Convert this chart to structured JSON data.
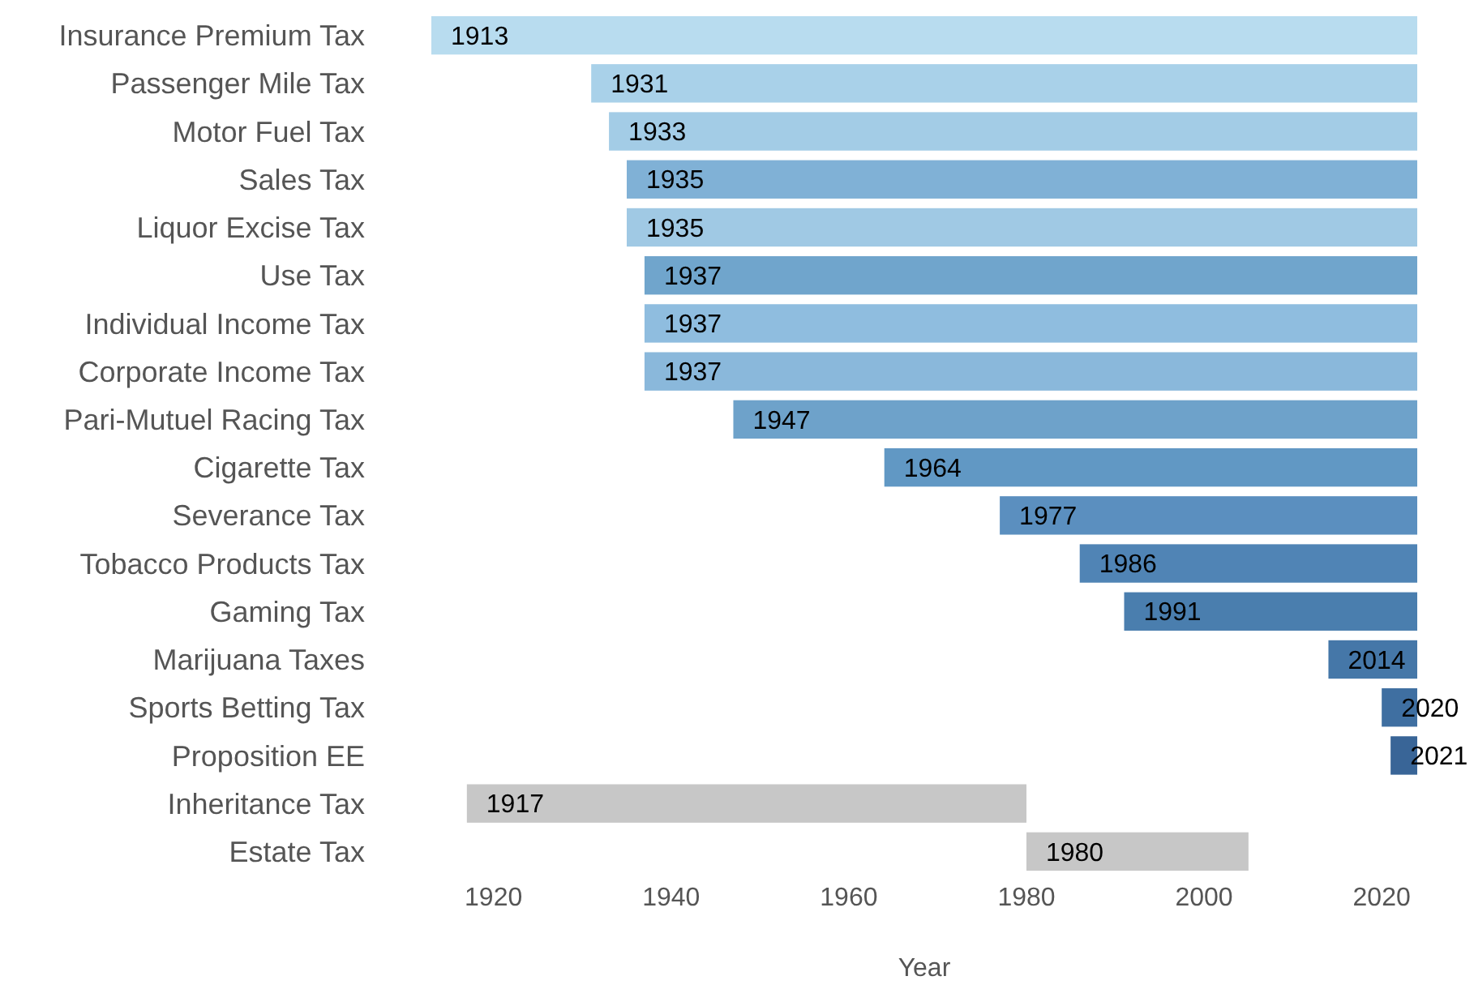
{
  "chart_data": {
    "type": "bar",
    "orientation": "horizontal",
    "xlabel": "Year",
    "categories": [
      "Insurance Premium Tax",
      "Passenger Mile Tax",
      "Motor Fuel Tax",
      "Sales Tax",
      "Liquor Excise Tax",
      "Use Tax",
      "Individual Income Tax",
      "Corporate Income Tax",
      "Pari-Mutuel Racing Tax",
      "Cigarette Tax",
      "Severance Tax",
      "Tobacco Products Tax",
      "Gaming Tax",
      "Marijuana Taxes",
      "Sports Betting Tax",
      "Proposition EE",
      "Inheritance Tax",
      "Estate Tax"
    ],
    "base": [
      1913,
      1931,
      1933,
      1935,
      1935,
      1937,
      1937,
      1937,
      1947,
      1964,
      1977,
      1986,
      1991,
      2014,
      2020,
      2021,
      1917,
      1980
    ],
    "values": [
      111,
      93,
      91,
      89,
      89,
      87,
      87,
      87,
      77,
      60,
      47,
      38,
      33,
      10,
      4,
      3,
      63,
      25
    ],
    "annotations": [
      {
        "text": "1913",
        "x": 1913,
        "y": "Insurance Premium Tax"
      },
      {
        "text": "1931",
        "x": 1931,
        "y": "Passenger Mile Tax"
      },
      {
        "text": "1933",
        "x": 1933,
        "y": "Motor Fuel Tax"
      },
      {
        "text": "1935",
        "x": 1935,
        "y": "Sales Tax"
      },
      {
        "text": "1935",
        "x": 1935,
        "y": "Liquor Excise Tax"
      },
      {
        "text": "1937",
        "x": 1937,
        "y": "Use Tax"
      },
      {
        "text": "1937",
        "x": 1937,
        "y": "Individual Income Tax"
      },
      {
        "text": "1937",
        "x": 1937,
        "y": "Corporate Income Tax"
      },
      {
        "text": "1947",
        "x": 1947,
        "y": "Pari-Mutuel Racing Tax"
      },
      {
        "text": "1964",
        "x": 1964,
        "y": "Cigarette Tax"
      },
      {
        "text": "1977",
        "x": 1977,
        "y": "Severance Tax"
      },
      {
        "text": "1986",
        "x": 1986,
        "y": "Tobacco Products Tax"
      },
      {
        "text": "1991",
        "x": 1991,
        "y": "Gaming Tax"
      },
      {
        "text": "2014",
        "x": 2014,
        "y": "Marijuana Taxes"
      },
      {
        "text": "2020",
        "x": 2020,
        "y": "Sports Betting Tax"
      },
      {
        "text": "2021",
        "x": 2021,
        "y": "Proposition EE"
      },
      {
        "text": "1917",
        "x": 1917,
        "y": "Inheritance Tax"
      },
      {
        "text": "1980",
        "x": 1980,
        "y": "Estate Tax"
      }
    ],
    "colors": [
      "#b8dcef",
      "#a9d1e9",
      "#a3cce6",
      "#80b1d6",
      "#a0c9e4",
      "#70a5cc",
      "#8fbddf",
      "#8ab8db",
      "#6ea2ca",
      "#6198c4",
      "#5b8fbf",
      "#5084b5",
      "#4a7eae",
      "#4577a8",
      "#3f6fa1",
      "#396597",
      "#c7c7c7",
      "#c7c7c7"
    ],
    "xlim": [
      1913,
      2024
    ],
    "xticks": [
      1920,
      1940,
      1960,
      1980,
      2000,
      2020
    ],
    "grid": false
  }
}
